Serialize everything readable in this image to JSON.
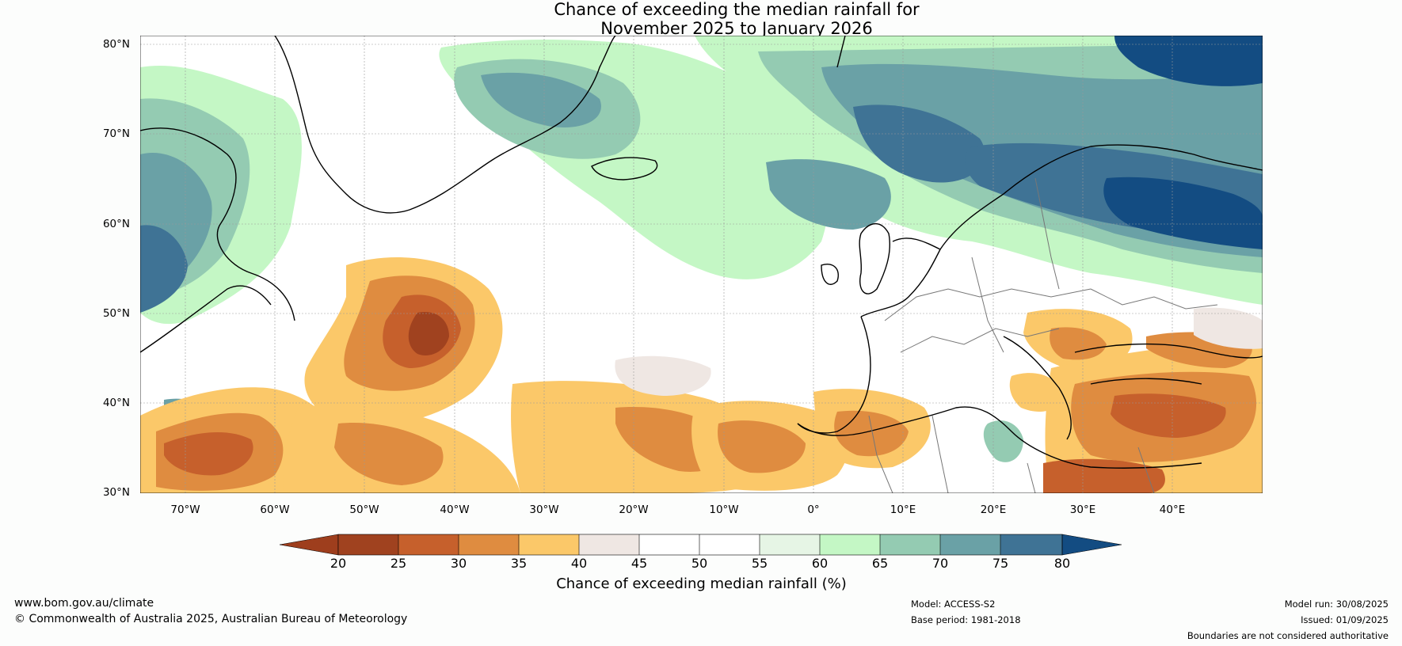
{
  "title": {
    "line1": "Chance of exceeding the median rainfall for",
    "line2": "November 2025 to January 2026"
  },
  "map": {
    "latitude_labels": [
      "80°N",
      "70°N",
      "60°N",
      "50°N",
      "40°N",
      "30°N"
    ],
    "longitude_labels": [
      "70°W",
      "60°W",
      "50°W",
      "40°W",
      "30°W",
      "20°W",
      "10°W",
      "0°",
      "10°E",
      "20°E",
      "30°E",
      "40°E"
    ],
    "extent": {
      "lon_min": -75,
      "lon_max": 50,
      "lat_min": 30,
      "lat_max": 81
    },
    "colors": {
      "20-25": "#a0421f",
      "25-30": "#c6602c",
      "30-35": "#df8c40",
      "35-40": "#fbc869",
      "40-45": "#efe7e3",
      "45-50": "#ffffff",
      "50-55": "#ffffff",
      "55-60": "#e6f5e5",
      "60-65": "#c4f7c5",
      "65-70": "#94cbb2",
      "70-75": "#6aa1a6",
      "75-80": "#3f7395",
      "above-80": "#134c82",
      "below-20": "#9e3e1d"
    }
  },
  "colorbar": {
    "ticks": [
      "20",
      "25",
      "30",
      "35",
      "40",
      "45",
      "50",
      "55",
      "60",
      "65",
      "70",
      "75",
      "80"
    ],
    "label": "Chance of exceeding median rainfall (%)"
  },
  "footer": {
    "website": "www.bom.gov.au/climate",
    "copyright": "© Commonwealth of Australia 2025, Australian Bureau of Meteorology",
    "model": "Model: ACCESS-S2",
    "base_period": "Base period: 1981-2018",
    "model_run": "Model run: 30/08/2025",
    "issued": "Issued: 01/09/2025",
    "disclaimer": "Boundaries are not considered authoritative"
  }
}
